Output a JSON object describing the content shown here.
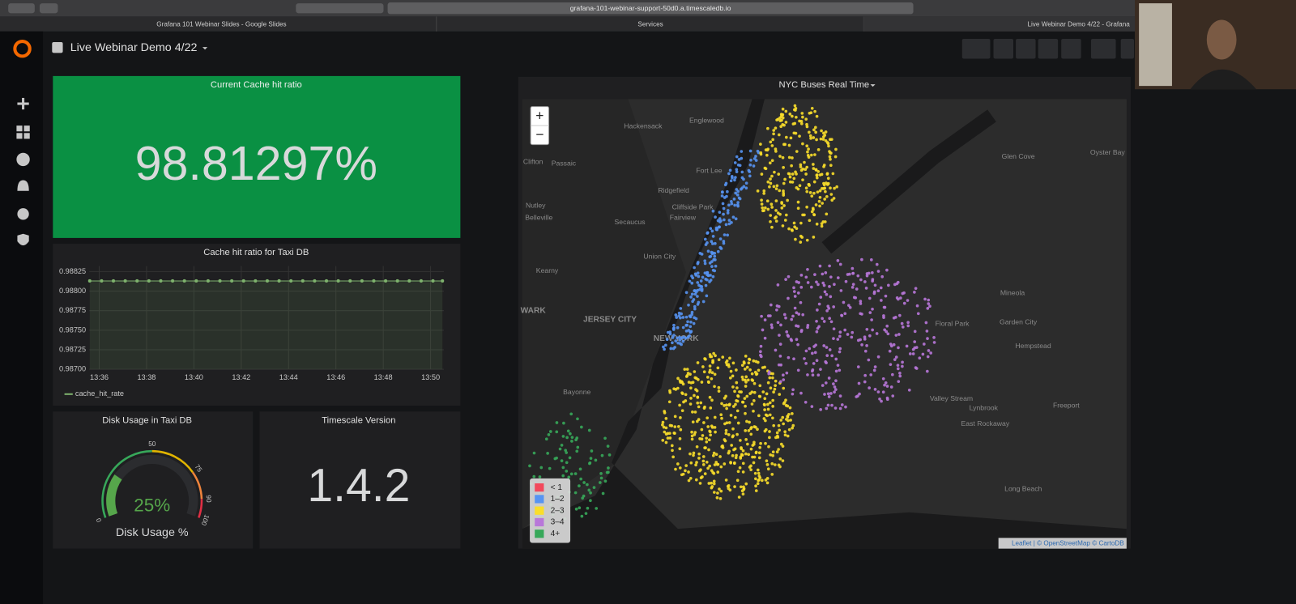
{
  "browser": {
    "url": "grafana-101-webinar-support-50d0.a.timescaledb.io",
    "tabs": [
      "Grafana 101 Webinar Slides - Google Slides",
      "Services",
      "Live Webinar Demo 4/22 - Grafana"
    ]
  },
  "dashboard": {
    "title": "Live Webinar Demo 4/22"
  },
  "stat_panel": {
    "title": "Current Cache hit ratio",
    "value": "98.81297%"
  },
  "version_panel": {
    "title": "Timescale Version",
    "value": "1.4.2"
  },
  "chart_data": [
    {
      "type": "line",
      "title": "Cache hit ratio for Taxi DB",
      "x": [
        815.6,
        816.1,
        816.6,
        817.1,
        817.6,
        818.1,
        818.6,
        819.1,
        819.6,
        820.1,
        820.6,
        821.1,
        821.6,
        822.1,
        822.6,
        823.1,
        823.6,
        824.1,
        824.6,
        825.1,
        825.6,
        826.1,
        826.6,
        827.1,
        827.6,
        828.1,
        828.6,
        829.1,
        829.6,
        830.1,
        830.5
      ],
      "series": [
        {
          "name": "cache_hit_rate",
          "color": "#7eb26d",
          "values": [
            0.98813,
            0.98813,
            0.98813,
            0.98813,
            0.98813,
            0.98813,
            0.98813,
            0.98813,
            0.98813,
            0.98813,
            0.98813,
            0.98813,
            0.98813,
            0.98813,
            0.98813,
            0.98813,
            0.98813,
            0.98813,
            0.98813,
            0.98813,
            0.98813,
            0.98813,
            0.98813,
            0.98813,
            0.98813,
            0.98813,
            0.98813,
            0.98813,
            0.98813,
            0.98813,
            0.98813
          ]
        }
      ],
      "xlim": [
        815.58,
        830.56
      ],
      "xticks": [
        {
          "value": 816,
          "label": "13:36"
        },
        {
          "value": 818,
          "label": "13:38"
        },
        {
          "value": 820,
          "label": "13:40"
        },
        {
          "value": 822,
          "label": "13:42"
        },
        {
          "value": 824,
          "label": "13:44"
        },
        {
          "value": 826,
          "label": "13:46"
        },
        {
          "value": 828,
          "label": "13:48"
        },
        {
          "value": 830,
          "label": "13:50"
        }
      ],
      "ylim": [
        0.987,
        0.98832
      ],
      "yticks": [
        {
          "value": 0.987,
          "label": "0.98700"
        },
        0.98725,
        {
          "value": 0.9875,
          "label": "0.98750"
        },
        0.98775,
        {
          "value": 0.988,
          "label": "0.98800"
        },
        0.98825
      ],
      "grid": true
    },
    {
      "type": "gauge",
      "title": "Disk Usage in Taxi DB",
      "values": [
        25
      ],
      "value_labels": [
        "25%"
      ],
      "label": "Disk Usage %",
      "color": "#56a64b",
      "ylim": [
        0,
        100
      ],
      "yticks": [
        0,
        50,
        75,
        90,
        100
      ]
    }
  ],
  "map": {
    "title": "NYC Buses Real Time",
    "zoom_in": "+",
    "zoom_out": "−",
    "legend": [
      {
        "label": "< 1",
        "color": "#f2495c"
      },
      {
        "label": "1–2",
        "color": "#5794f2"
      },
      {
        "label": "2–3",
        "color": "#fade2a"
      },
      {
        "label": "3–4",
        "color": "#b877d9"
      },
      {
        "label": "4+",
        "color": "#37a85a"
      }
    ],
    "places": [
      "Hackensack",
      "Englewood",
      "Clifton",
      "Passaic",
      "Fort Lee",
      "Ridgefield",
      "Cliffside Park",
      "Fairview",
      "Nutley",
      "Belleville",
      "Secaucus",
      "Union City",
      "Kearny",
      "WARK",
      "JERSEY CITY",
      "NEW YORK",
      "Bayonne",
      "Glen Cove",
      "Oyster Bay",
      "Mineola",
      "Floral Park",
      "Garden City",
      "Hempstead",
      "Valley Stream",
      "Lynbrook",
      "Freeport",
      "East Rockaway",
      "Long Beach"
    ],
    "attribution": "Leaflet | © OpenStreetMap © CartoDB"
  }
}
